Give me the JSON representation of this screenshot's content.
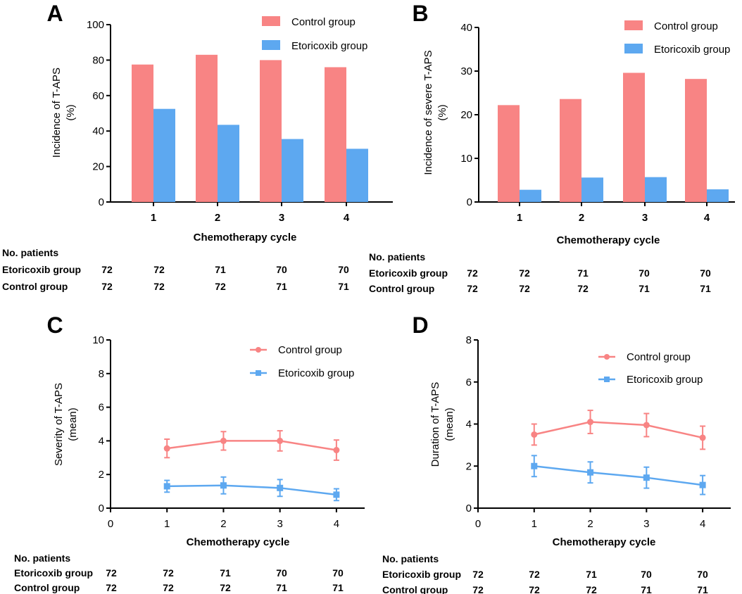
{
  "colors": {
    "control": "#f88484",
    "etoricoxib": "#5da8f0"
  },
  "xlabel": "Chemotherapy cycle",
  "table": {
    "header": "No. patients",
    "rows": [
      {
        "label": "Etoricoxib group",
        "values": [
          "72",
          "72",
          "71",
          "70",
          "70"
        ]
      },
      {
        "label": "Control group",
        "values": [
          "72",
          "72",
          "72",
          "71",
          "71"
        ]
      }
    ]
  },
  "chart_data": [
    {
      "panel": "A",
      "type": "bar",
      "ylabel": "Incidence of T-APS",
      "ylabel2": "(%)",
      "xlabel": "Chemotherapy cycle",
      "categories": [
        "1",
        "2",
        "3",
        "4"
      ],
      "ylim": [
        0,
        100
      ],
      "yticks": [
        0,
        20,
        40,
        60,
        80,
        100
      ],
      "series": [
        {
          "name": "Control group",
          "values": [
            77.5,
            83,
            80,
            76
          ]
        },
        {
          "name": "Etoricoxib group",
          "values": [
            52.5,
            43.5,
            35.5,
            30
          ]
        }
      ]
    },
    {
      "panel": "B",
      "type": "bar",
      "ylabel": "Incidence of severe T-APS",
      "ylabel2": "(%)",
      "xlabel": "Chemotherapy cycle",
      "categories": [
        "1",
        "2",
        "3",
        "4"
      ],
      "ylim": [
        0,
        40
      ],
      "yticks": [
        0,
        10,
        20,
        30,
        40
      ],
      "series": [
        {
          "name": "Control group",
          "values": [
            22.2,
            23.6,
            29.6,
            28.2
          ]
        },
        {
          "name": "Etoricoxib group",
          "values": [
            2.8,
            5.6,
            5.7,
            2.9
          ]
        }
      ]
    },
    {
      "panel": "C",
      "type": "line",
      "ylabel": "Severity of T-APS",
      "ylabel2": "(mean)",
      "xlabel": "Chemotherapy cycle",
      "xticks": [
        "0",
        "1",
        "2",
        "3",
        "4"
      ],
      "x": [
        1,
        2,
        3,
        4
      ],
      "xlim": [
        0,
        4.5
      ],
      "ylim": [
        0,
        10
      ],
      "yticks": [
        0,
        2,
        4,
        6,
        8,
        10
      ],
      "series": [
        {
          "name": "Control group",
          "values": [
            3.55,
            4.0,
            4.0,
            3.45
          ],
          "err": [
            0.55,
            0.55,
            0.6,
            0.6
          ]
        },
        {
          "name": "Etoricoxib group",
          "values": [
            1.3,
            1.35,
            1.2,
            0.8
          ],
          "err": [
            0.35,
            0.5,
            0.5,
            0.35
          ]
        }
      ]
    },
    {
      "panel": "D",
      "type": "line",
      "ylabel": "Duration of T-APS",
      "ylabel2": "(mean)",
      "xlabel": "Chemotherapy cycle",
      "xticks": [
        "0",
        "1",
        "2",
        "3",
        "4"
      ],
      "x": [
        1,
        2,
        3,
        4
      ],
      "xlim": [
        0,
        4.5
      ],
      "ylim": [
        0,
        8
      ],
      "yticks": [
        0,
        2,
        4,
        6,
        8
      ],
      "series": [
        {
          "name": "Control group",
          "values": [
            3.5,
            4.1,
            3.95,
            3.35
          ],
          "err": [
            0.5,
            0.55,
            0.55,
            0.55
          ]
        },
        {
          "name": "Etoricoxib group",
          "values": [
            2.0,
            1.7,
            1.45,
            1.1
          ],
          "err": [
            0.5,
            0.5,
            0.5,
            0.45
          ]
        }
      ]
    }
  ]
}
